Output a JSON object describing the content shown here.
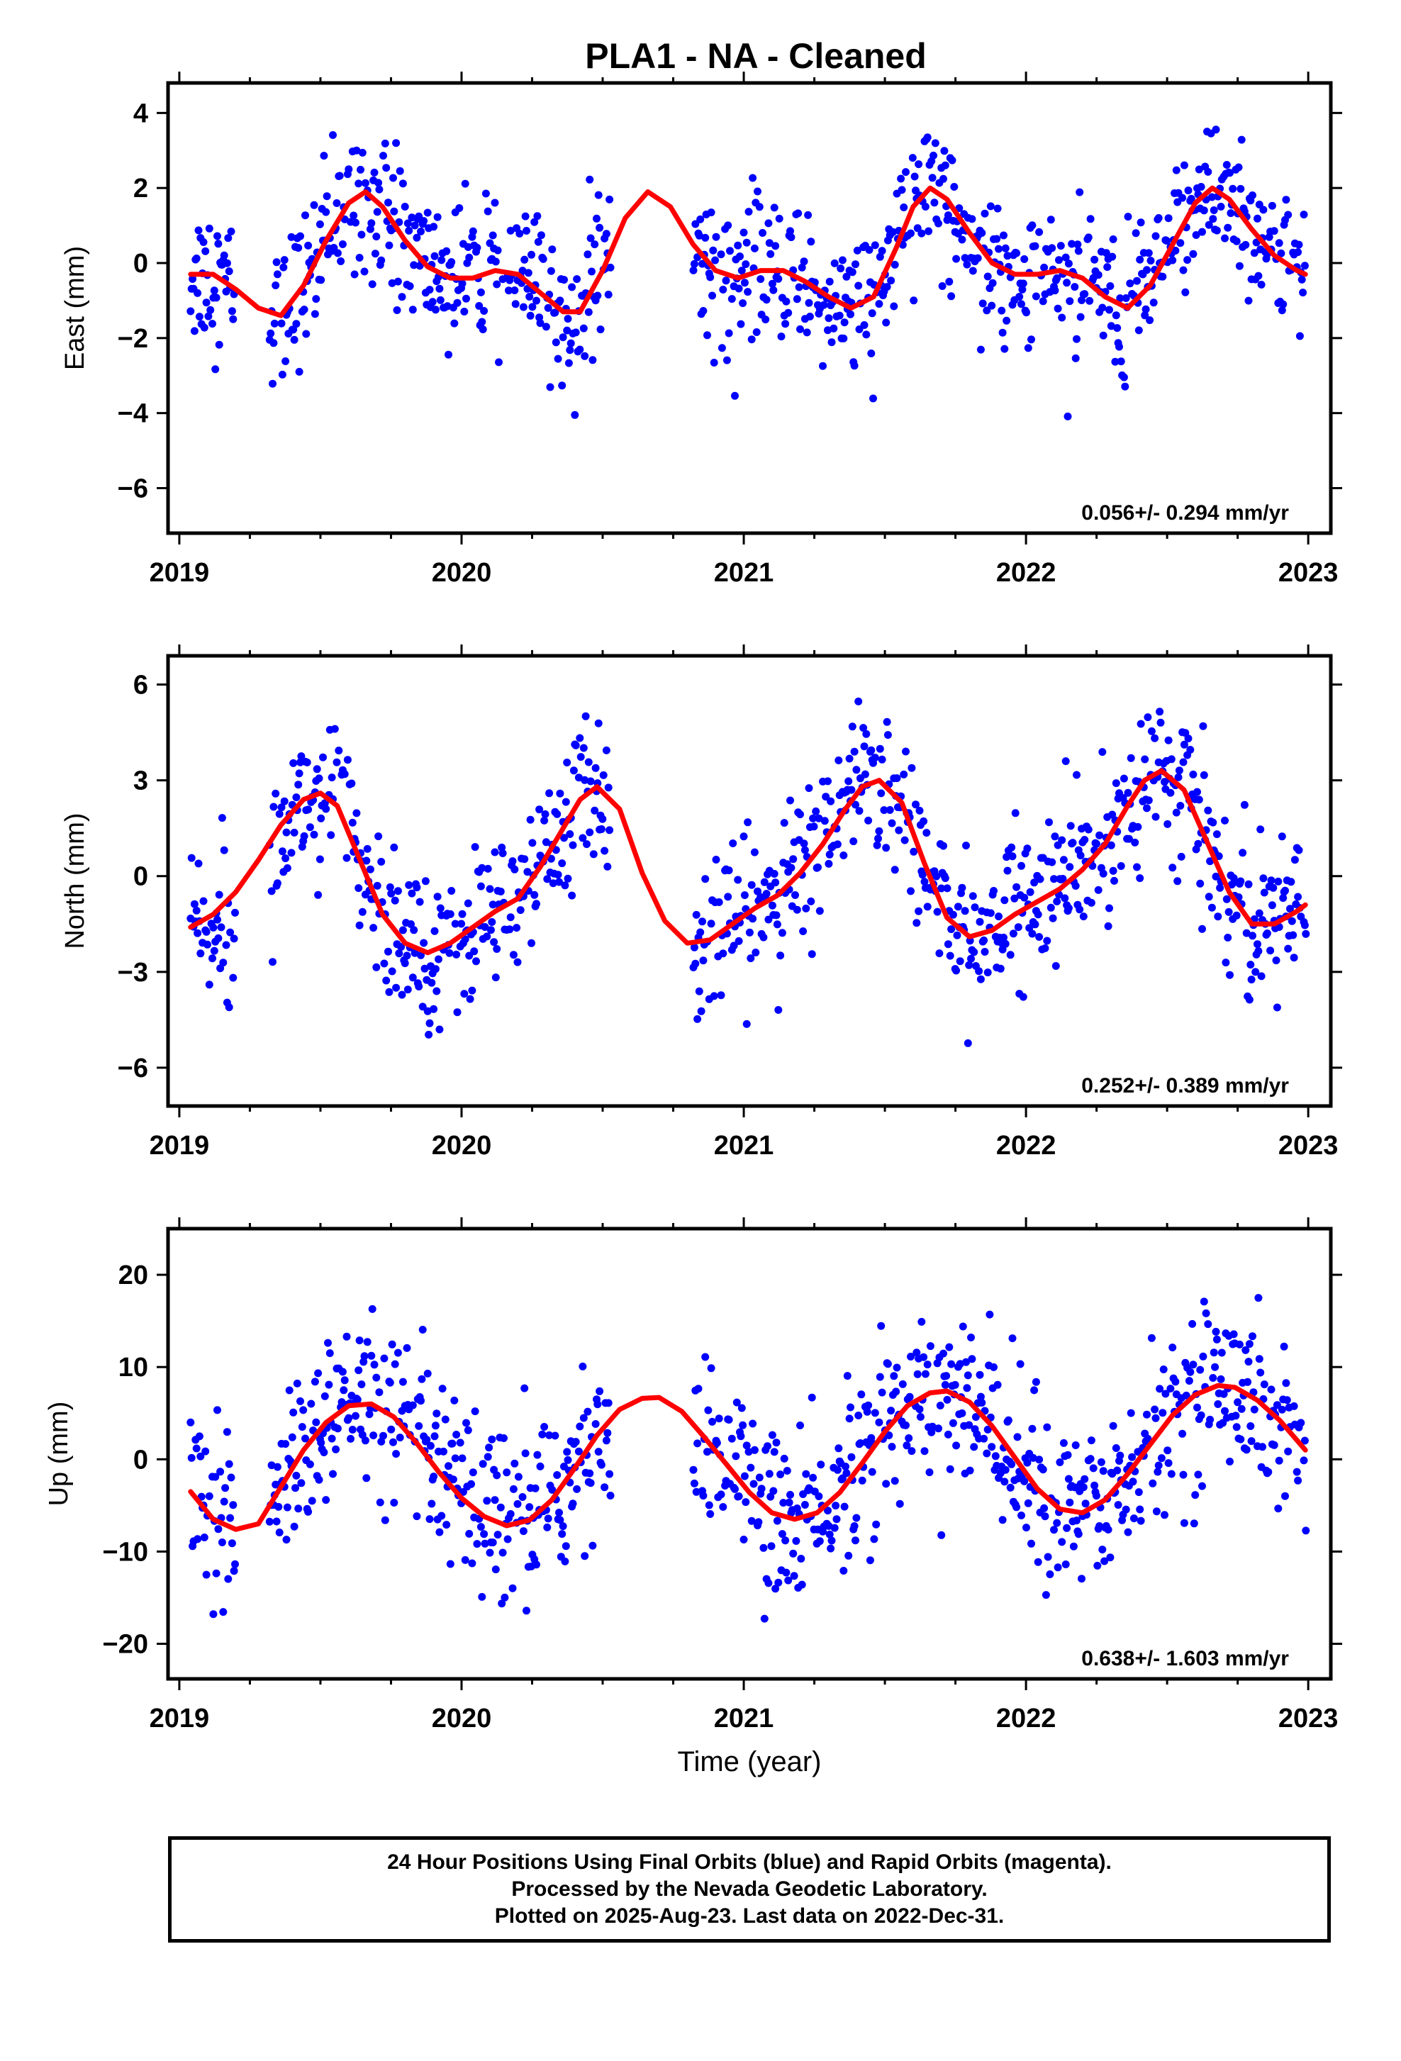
{
  "title": "PLA1  - NA - Cleaned",
  "footer": {
    "line1": "24 Hour Positions Using Final Orbits (blue) and Rapid Orbits (magenta).",
    "line2": "Processed by the Nevada Geodetic Laboratory.",
    "line3": "Plotted on 2025-Aug-23. Last data on 2022-Dec-31."
  },
  "colors": {
    "points": "#0000ff",
    "fit": "#ff0000",
    "frame": "#000000"
  },
  "chart_data": [
    {
      "type": "scatter",
      "ylabel": "East (mm)",
      "xlabel": "",
      "rate": "0.056+/- 0.294 mm/yr",
      "xlim": [
        2018.96,
        2023.08
      ],
      "ylim": [
        -7.2,
        4.8
      ],
      "xticks": [
        2019,
        2020,
        2021,
        2022,
        2023
      ],
      "yticks": [
        4,
        2,
        0,
        -2,
        -4,
        -6
      ],
      "ytick_labels": [
        "4",
        "2",
        "0",
        "−2",
        "−4",
        "−6"
      ],
      "fit_series": {
        "x": [
          2019.04,
          2019.12,
          2019.2,
          2019.28,
          2019.36,
          2019.44,
          2019.52,
          2019.6,
          2019.66,
          2019.72,
          2019.8,
          2019.88,
          2019.96,
          2020.04,
          2020.12,
          2020.2,
          2020.28,
          2020.36,
          2020.42,
          2020.5,
          2020.58,
          2020.66,
          2020.74,
          2020.82,
          2020.9,
          2020.98,
          2021.06,
          2021.14,
          2021.22,
          2021.3,
          2021.38,
          2021.46,
          2021.54,
          2021.6,
          2021.66,
          2021.72,
          2021.8,
          2021.88,
          2021.96,
          2022.04,
          2022.12,
          2022.2,
          2022.28,
          2022.36,
          2022.44,
          2022.52,
          2022.6,
          2022.66,
          2022.72,
          2022.8,
          2022.88,
          2022.96,
          2022.99
        ],
        "y": [
          -0.3,
          -0.3,
          -0.7,
          -1.2,
          -1.4,
          -0.6,
          0.6,
          1.6,
          1.9,
          1.5,
          0.6,
          -0.1,
          -0.4,
          -0.4,
          -0.2,
          -0.3,
          -0.8,
          -1.3,
          -1.3,
          -0.2,
          1.2,
          1.9,
          1.5,
          0.5,
          -0.2,
          -0.4,
          -0.2,
          -0.2,
          -0.5,
          -0.9,
          -1.2,
          -0.9,
          0.4,
          1.5,
          2.0,
          1.7,
          0.8,
          0.0,
          -0.3,
          -0.3,
          -0.2,
          -0.4,
          -0.9,
          -1.2,
          -0.6,
          0.5,
          1.6,
          2.0,
          1.7,
          0.9,
          0.2,
          -0.2,
          -0.3
        ]
      }
    },
    {
      "type": "scatter",
      "ylabel": "North (mm)",
      "xlabel": "",
      "rate": "0.252+/- 0.389 mm/yr",
      "xlim": [
        2018.96,
        2023.08
      ],
      "ylim": [
        -7.2,
        6.9
      ],
      "xticks": [
        2019,
        2020,
        2021,
        2022,
        2023
      ],
      "yticks": [
        6,
        3,
        0,
        -3,
        -6
      ],
      "ytick_labels": [
        "6",
        "3",
        "0",
        "−3",
        "−6"
      ],
      "fit_series": {
        "x": [
          2019.04,
          2019.12,
          2019.2,
          2019.28,
          2019.36,
          2019.44,
          2019.5,
          2019.56,
          2019.64,
          2019.72,
          2019.8,
          2019.88,
          2019.96,
          2020.04,
          2020.12,
          2020.2,
          2020.28,
          2020.36,
          2020.42,
          2020.48,
          2020.56,
          2020.64,
          2020.72,
          2020.8,
          2020.88,
          2020.96,
          2021.04,
          2021.12,
          2021.2,
          2021.28,
          2021.36,
          2021.42,
          2021.48,
          2021.56,
          2021.64,
          2021.72,
          2021.8,
          2021.88,
          2021.96,
          2022.04,
          2022.12,
          2022.2,
          2022.28,
          2022.36,
          2022.42,
          2022.48,
          2022.56,
          2022.64,
          2022.72,
          2022.8,
          2022.88,
          2022.96,
          2022.99
        ],
        "y": [
          -1.6,
          -1.2,
          -0.5,
          0.5,
          1.6,
          2.4,
          2.6,
          2.2,
          0.5,
          -1.2,
          -2.1,
          -2.4,
          -2.1,
          -1.6,
          -1.1,
          -0.7,
          0.3,
          1.5,
          2.4,
          2.8,
          2.1,
          0.1,
          -1.4,
          -2.1,
          -2.0,
          -1.5,
          -1.0,
          -0.6,
          0.1,
          1.0,
          2.1,
          2.8,
          3.0,
          2.3,
          0.4,
          -1.3,
          -1.9,
          -1.7,
          -1.2,
          -0.8,
          -0.4,
          0.2,
          1.0,
          2.2,
          3.0,
          3.3,
          2.7,
          1.1,
          -0.5,
          -1.5,
          -1.5,
          -1.1,
          -0.9
        ]
      }
    },
    {
      "type": "scatter",
      "ylabel": "Up (mm)",
      "xlabel": "Time (year)",
      "rate": "0.638+/- 1.603 mm/yr",
      "xlim": [
        2018.96,
        2023.08
      ],
      "ylim": [
        -23.8,
        25
      ],
      "xticks": [
        2019,
        2020,
        2021,
        2022,
        2023
      ],
      "yticks": [
        20,
        10,
        0,
        -10,
        -20
      ],
      "ytick_labels": [
        "20",
        "10",
        "0",
        "−10",
        "−20"
      ],
      "fit_series": {
        "x": [
          2019.04,
          2019.12,
          2019.2,
          2019.28,
          2019.36,
          2019.44,
          2019.52,
          2019.6,
          2019.68,
          2019.76,
          2019.84,
          2019.92,
          2020.0,
          2020.08,
          2020.16,
          2020.24,
          2020.32,
          2020.4,
          2020.48,
          2020.56,
          2020.64,
          2020.7,
          2020.78,
          2020.86,
          2020.94,
          2021.02,
          2021.1,
          2021.18,
          2021.26,
          2021.34,
          2021.42,
          2021.5,
          2021.58,
          2021.66,
          2021.72,
          2021.8,
          2021.88,
          2021.96,
          2022.04,
          2022.12,
          2022.2,
          2022.28,
          2022.36,
          2022.44,
          2022.52,
          2022.6,
          2022.68,
          2022.74,
          2022.82,
          2022.9,
          2022.99
        ],
        "y": [
          -3.5,
          -6.5,
          -7.6,
          -7.0,
          -3.0,
          1.0,
          4.0,
          5.8,
          6.0,
          4.6,
          1.8,
          -1.4,
          -4.2,
          -6.2,
          -7.2,
          -6.6,
          -4.4,
          -1.0,
          2.6,
          5.4,
          6.6,
          6.7,
          5.2,
          2.4,
          -0.6,
          -3.6,
          -5.8,
          -6.5,
          -5.8,
          -3.6,
          -0.4,
          3.0,
          5.8,
          7.2,
          7.4,
          6.2,
          3.6,
          0.2,
          -3.2,
          -5.4,
          -5.8,
          -4.4,
          -1.6,
          1.6,
          4.8,
          7.0,
          8.0,
          7.8,
          6.4,
          4.2,
          1.0
        ]
      }
    }
  ]
}
